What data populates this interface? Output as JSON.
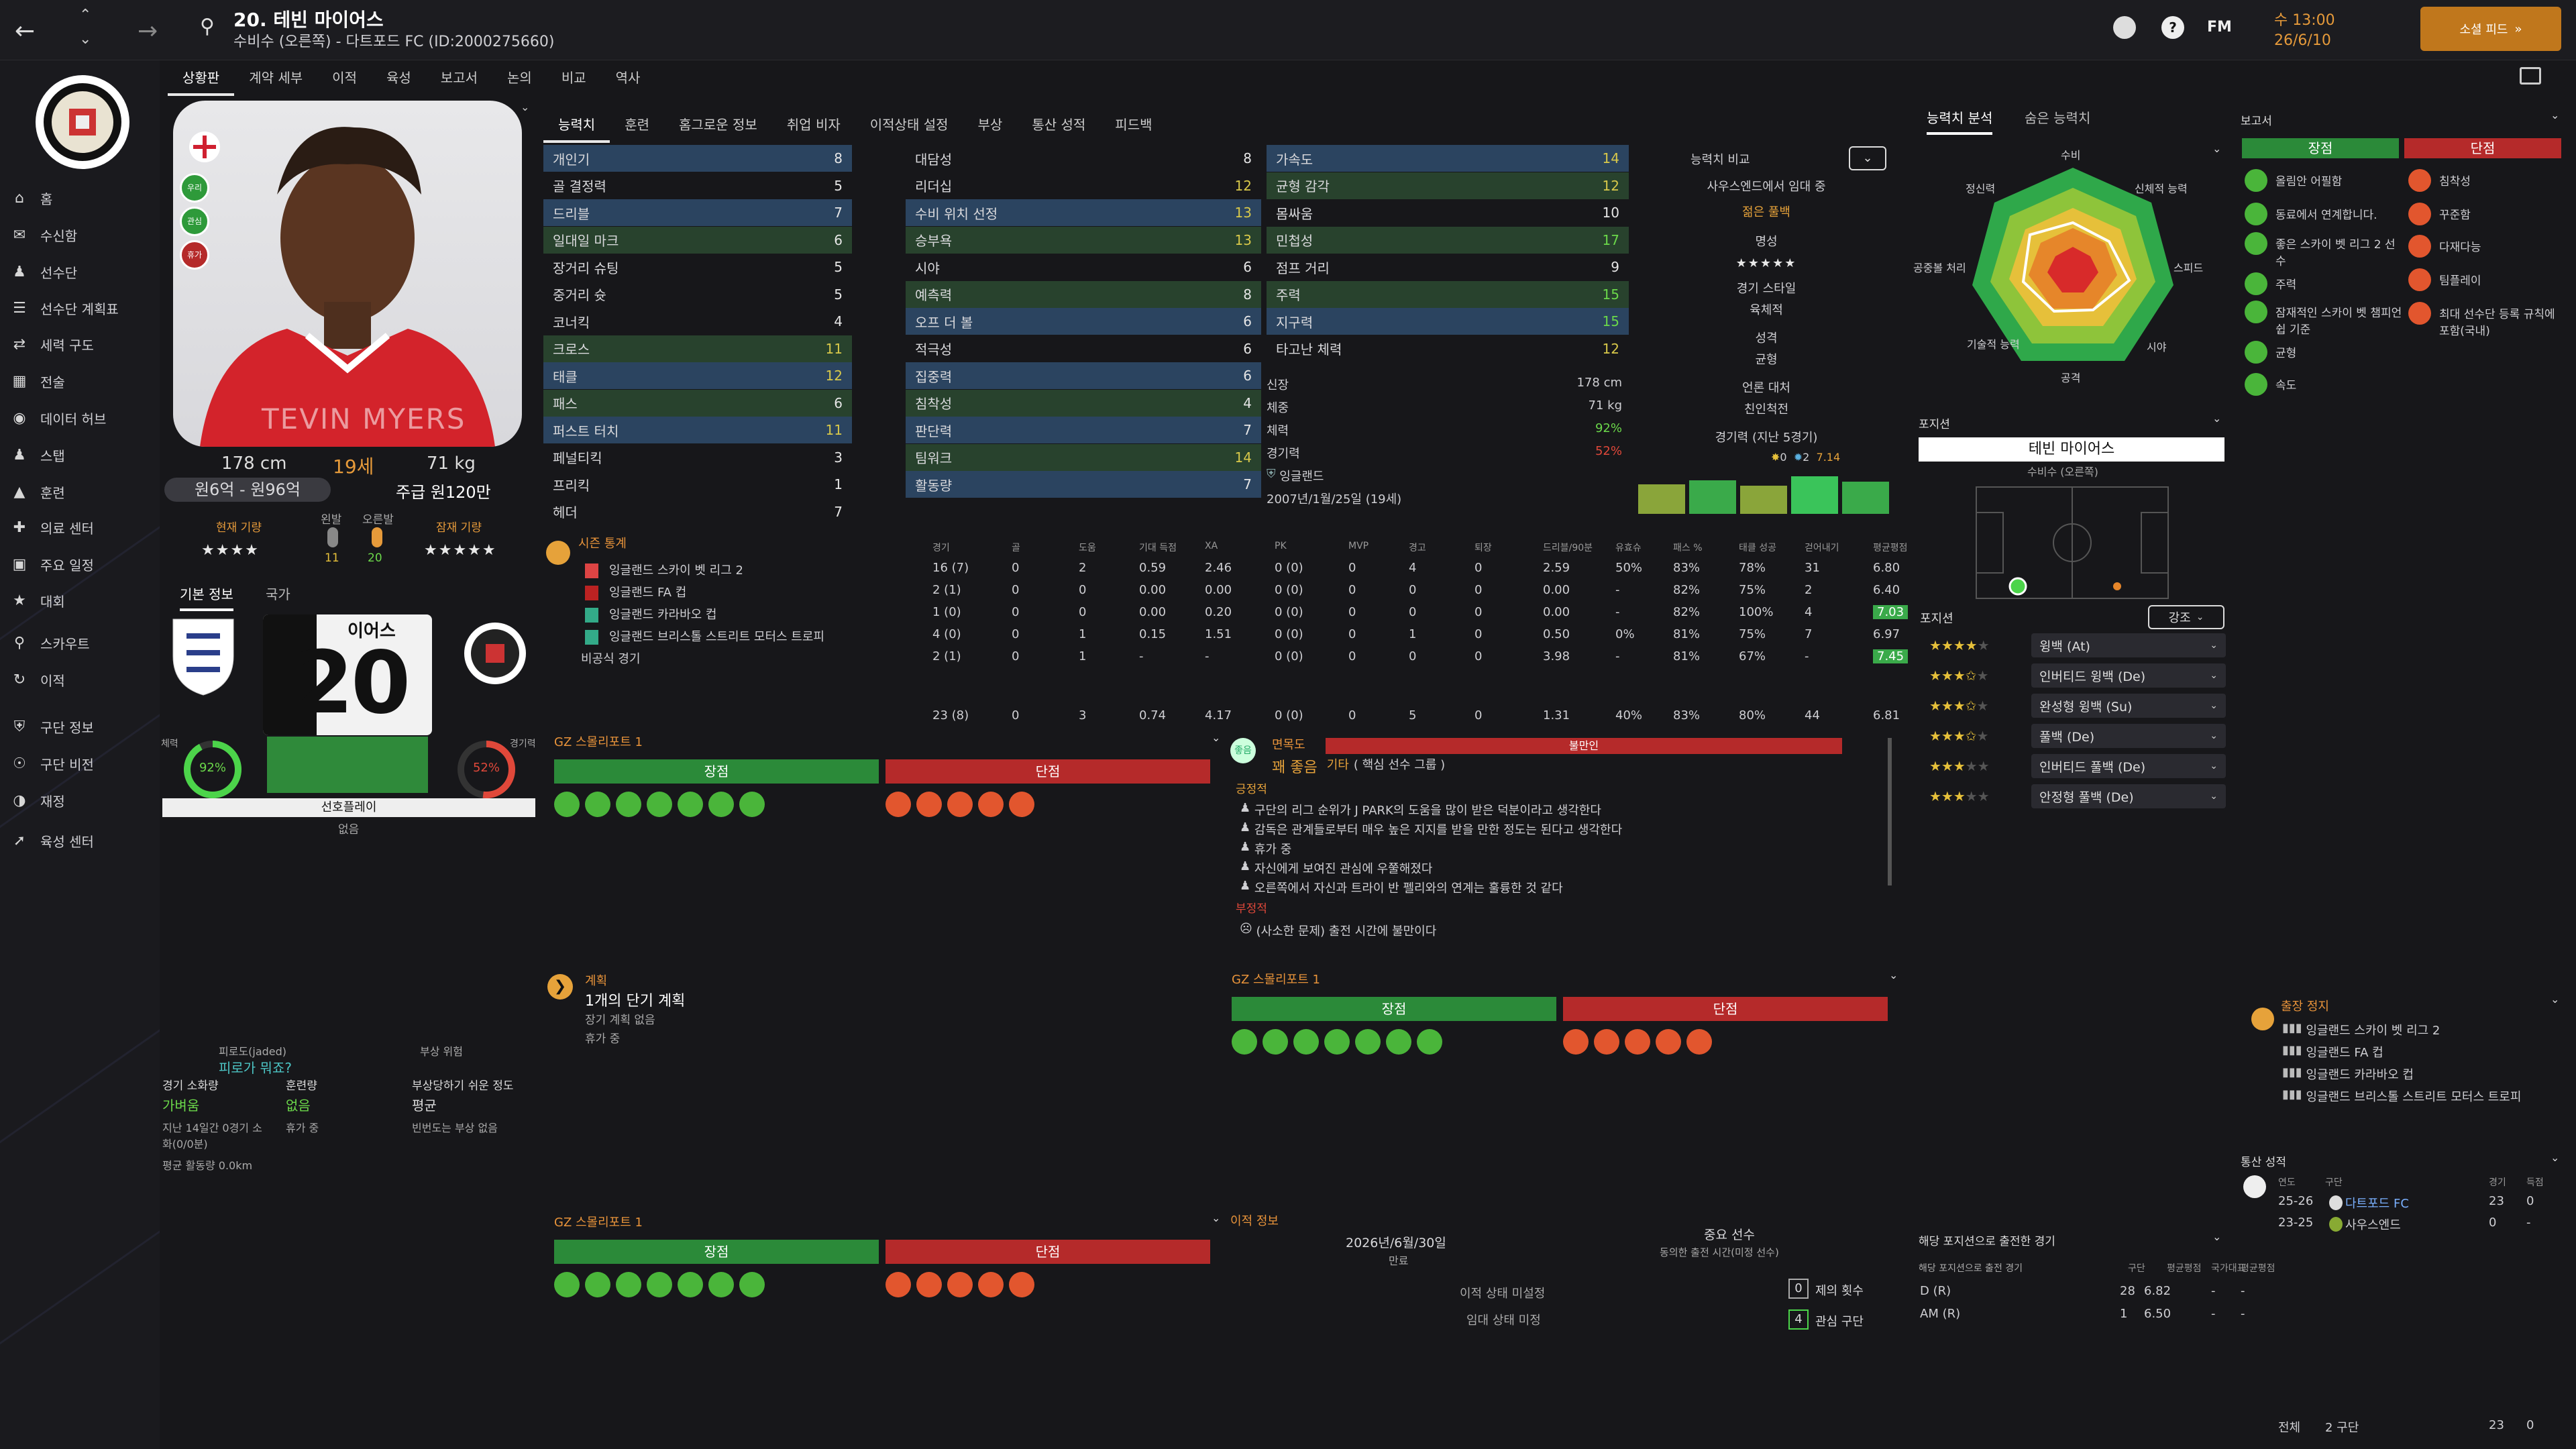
{
  "topbar": {
    "title": "20. 테빈 마이어스",
    "subtitle": "수비수 (오른쪽) - 다트포드 FC (ID:2000275660)",
    "date_day": "수 13:00",
    "date": "26/6/10",
    "continue_label": "소셜 피드",
    "fm": "FM"
  },
  "nav": [
    "홈",
    "수신함",
    "선수단",
    "선수단 계획표",
    "세력 구도",
    "전술",
    "데이터 허브",
    "스탭",
    "훈련",
    "의료 센터",
    "주요 일정",
    "대회",
    "스카우트",
    "이적",
    "구단 정보",
    "구단 비전",
    "재정",
    "육성 센터"
  ],
  "subtabs": [
    "상황판",
    "계약 세부",
    "이적",
    "육성",
    "보고서",
    "논의",
    "비교",
    "역사"
  ],
  "profile": {
    "height": "178 cm",
    "age": "19세",
    "weight": "71 kg",
    "value": "원6억 - 원96억",
    "wage": "주급 원120만",
    "cur_label": "현재 기량",
    "pot_label": "잠재 기량",
    "foot_left": "왼발",
    "foot_right": "오른발",
    "foot_left_val": "11",
    "foot_right_val": "20",
    "shirt_name": "TEVIN MYERS",
    "badges": [
      "우리",
      "관심",
      "휴가"
    ]
  },
  "basic_tabs": [
    "기본 정보",
    "국가"
  ],
  "jersey": {
    "number": "20",
    "name": "이어스"
  },
  "fitness": {
    "label_l": "체력",
    "val_l": "92%",
    "label_r": "경기력",
    "val_r": "52%",
    "status": "선호플레이",
    "status2": "없음"
  },
  "tabs": [
    "능력치",
    "훈련",
    "홈그로운 정보",
    "취업 비자",
    "이적상태 설정",
    "부상",
    "통산 성적",
    "피드백"
  ],
  "attrs": {
    "col1": [
      [
        "개인기",
        "8"
      ],
      [
        "골 결정력",
        "5"
      ],
      [
        "드리블",
        "7"
      ],
      [
        "일대일 마크",
        "6"
      ],
      [
        "장거리 슈팅",
        "5"
      ],
      [
        "중거리 슛",
        "5"
      ],
      [
        "코너킥",
        "4"
      ],
      [
        "크로스",
        "11"
      ],
      [
        "태클",
        "12"
      ],
      [
        "패스",
        "6"
      ],
      [
        "퍼스트 터치",
        "11"
      ],
      [
        "페널티킥",
        "3"
      ],
      [
        "프리킥",
        "1"
      ],
      [
        "헤더",
        "7"
      ]
    ],
    "col2": [
      [
        "대담성",
        "8"
      ],
      [
        "리더십",
        "12"
      ],
      [
        "수비 위치 선정",
        "13"
      ],
      [
        "승부욕",
        "13"
      ],
      [
        "시야",
        "6"
      ],
      [
        "예측력",
        "8"
      ],
      [
        "오프 더 볼",
        "6"
      ],
      [
        "적극성",
        "6"
      ],
      [
        "집중력",
        "6"
      ],
      [
        "침착성",
        "4"
      ],
      [
        "판단력",
        "7"
      ],
      [
        "팀워크",
        "14"
      ],
      [
        "활동량",
        "7"
      ]
    ],
    "col3": [
      [
        "가속도",
        "14"
      ],
      [
        "균형 감각",
        "12"
      ],
      [
        "몸싸움",
        "10"
      ],
      [
        "민첩성",
        "17"
      ],
      [
        "점프 거리",
        "9"
      ],
      [
        "주력",
        "15"
      ],
      [
        "지구력",
        "15"
      ],
      [
        "타고난 체력",
        "12"
      ]
    ]
  },
  "info": {
    "height_l": "신장",
    "height": "178 cm",
    "weight_l": "체중",
    "weight": "71 kg",
    "fit_l": "체력",
    "fit": "92%",
    "form_l": "경기력",
    "form": "52%",
    "nation": "잉글랜드",
    "dob": "2007년/1월/25일 (19세)"
  },
  "compare": {
    "label": "능력치 비교",
    "from": "사우스엔드에서 임대 중",
    "role": "젊은 풀백",
    "rep_l": "명성",
    "style_l": "경기 스타일",
    "style": "육체적",
    "pers_l": "성격",
    "pers": "균형",
    "media_l": "언론 대처",
    "media": "친인척전",
    "form5_l": "경기력 (지난 5경기)",
    "form5_a": "0",
    "form5_b": "2",
    "form5_c": "7.14"
  },
  "season": {
    "title": "시즌 통계",
    "headers": [
      "경기",
      "골",
      "도움",
      "기대 득점",
      "XA",
      "PK",
      "MVP",
      "경고",
      "퇴장",
      "드리블/90분",
      "유효슈",
      "패스 %",
      "태클 성공",
      "걷어내기",
      "평균평점"
    ],
    "rows": [
      [
        "잉글랜드 스카이 벳 리그 2",
        "16 (7)",
        "0",
        "2",
        "0.59",
        "2.46",
        "0 (0)",
        "0",
        "4",
        "0",
        "2.59",
        "50%",
        "83%",
        "78%",
        "31",
        "6.80"
      ],
      [
        "잉글랜드 FA 컵",
        "2 (1)",
        "0",
        "0",
        "0.00",
        "0.00",
        "0 (0)",
        "0",
        "0",
        "0",
        "0.00",
        "-",
        "82%",
        "75%",
        "2",
        "6.40"
      ],
      [
        "잉글랜드 카라바오 컵",
        "1 (0)",
        "0",
        "0",
        "0.00",
        "0.20",
        "0 (0)",
        "0",
        "0",
        "0",
        "0.00",
        "-",
        "82%",
        "100%",
        "4",
        "7.03"
      ],
      [
        "잉글랜드 브리스톨 스트리트 모터스 트로피",
        "4 (0)",
        "0",
        "1",
        "0.15",
        "1.51",
        "0 (0)",
        "0",
        "1",
        "0",
        "0.50",
        "0%",
        "81%",
        "75%",
        "7",
        "6.97"
      ],
      [
        "비공식 경기",
        "2 (1)",
        "0",
        "1",
        "-",
        "-",
        "0 (0)",
        "0",
        "0",
        "0",
        "3.98",
        "-",
        "81%",
        "67%",
        "-",
        "7.45"
      ]
    ],
    "total": [
      "23 (8)",
      "0",
      "3",
      "0.74",
      "4.17",
      "0 (0)",
      "0",
      "5",
      "0",
      "1.31",
      "40%",
      "83%",
      "80%",
      "44",
      "6.81"
    ]
  },
  "scout": {
    "title": "GZ 스몰리포트 1",
    "strengths": "장점",
    "weaknesses": "단점"
  },
  "report": {
    "title": "면목도",
    "interest": "불만인",
    "grade": "꽤 좋음",
    "grade2": "기타",
    "group": "( 핵심 선수 그룹 )",
    "pos_l": "긍정적",
    "pos": [
      "구단의 리그 순위가 J PARK의 도움을 많이 받은 덕분이라고 생각한다",
      "감독은 관계들로부터 매우 높은 지지를 받을 만한 정도는 된다고 생각한다",
      "휴가 중",
      "자신에게 보여진 관심에 우쭐해졌다",
      "오른쪽에서 자신과 트라이 반 펠리와의 연계는 훌륭한 것 같다"
    ],
    "neg_l": "부정적",
    "neg": [
      "(사소한 문제) 출전 시간에 불만이다"
    ]
  },
  "plan": {
    "title": "계획",
    "main": "1개의 단기 계획",
    "sub1": "장기 계획 없음",
    "sub2": "휴가 중"
  },
  "fitness_box": {
    "a_l": "피로도(jaded)",
    "a": "피로가 뭐죠?",
    "b_l": "부상 위험",
    "c_l": "경기 소화량",
    "c": "가벼움",
    "d_l": "훈련량",
    "d": "없음",
    "e_l": "부상당하기 쉬운 정도",
    "e": "평균",
    "f": "지난 14일간 0경기 소화(0/0분)",
    "g": "휴가 중",
    "h": "빈번도는 부상 없음",
    "i": "평균 활동량 0.0km"
  },
  "transfer": {
    "title": "이적 정보",
    "date": "2026년/6월/30일",
    "date_l": "만료",
    "role": "중요 선수",
    "role_sub": "동의한 출전 시간(미정 선수)",
    "st1": "이적 상태 미설정",
    "st2": "임대 상태 미정",
    "offers": "0",
    "offers_l": "제의 횟수",
    "clubs": "4",
    "clubs_l": "관심 구단"
  },
  "analysis": {
    "tabs": [
      "능력치 분석",
      "숨은 능력치"
    ],
    "labels": [
      "수비",
      "신체적 능력",
      "스피드",
      "시야",
      "공격",
      "기술적 능력",
      "공중볼 처리",
      "정신력"
    ]
  },
  "position": {
    "title": "포지션",
    "name": "테빈 마이어스",
    "sub": "수비수 (오른쪽)",
    "roles_title": "포지션",
    "filter": "강조",
    "roles": [
      [
        "윙백 (At)",
        4
      ],
      [
        "인버티드 윙백 (De)",
        3.5
      ],
      [
        "완성형 윙백 (Su)",
        3.5
      ],
      [
        "풀백 (De)",
        3.5
      ],
      [
        "인버티드 풀백 (De)",
        3
      ],
      [
        "안정형 풀백 (De)",
        3
      ]
    ]
  },
  "pos_exp": {
    "title": "해당 포지션으로 출전한 경기",
    "sub": "해당 포지션으로 출전 경기",
    "cols": [
      "구단",
      "평균평점",
      "국가대표",
      "평균평점"
    ],
    "rows": [
      [
        "D (R)",
        "28",
        "6.82",
        "-",
        "-"
      ],
      [
        "AM (R)",
        "1",
        "6.50",
        "-",
        "-"
      ]
    ]
  },
  "reports": {
    "title": "보고서",
    "strengths": "장점",
    "weaknesses": "단점",
    "s": [
      "올림안 어필함",
      "동료에서 연계합니다.",
      "좋은 스카이 벳 리그 2 선수",
      "주력",
      "잠재적인 스카이 벳 챔피언쉽 기준",
      "균형",
      "속도"
    ],
    "w": [
      "침착성",
      "꾸준함",
      "다재다능",
      "팀플레이",
      "최대 선수단 등록 규칙에 포함(국내)"
    ]
  },
  "suspension": {
    "title": "출장 정지",
    "items": [
      "잉글랜드 스카이 벳 리그 2",
      "잉글랜드 FA 컵",
      "잉글랜드 카라바오 컵",
      "잉글랜드 브리스톨 스트리트 모터스 트로피"
    ]
  },
  "career": {
    "title": "통산 성적",
    "cols": [
      "연도",
      "구단",
      "경기",
      "득점"
    ],
    "rows": [
      [
        "25-26",
        "다트포드 FC",
        "23",
        "0"
      ],
      [
        "23-25",
        "사우스엔드",
        "0",
        "-"
      ]
    ],
    "total_l": "전체",
    "total_clubs": "2 구단",
    "total_games": "23",
    "total_goals": "0"
  },
  "colors": {
    "accent": "#c0771c",
    "green": "#2b8a39",
    "red": "#b52a2a"
  }
}
